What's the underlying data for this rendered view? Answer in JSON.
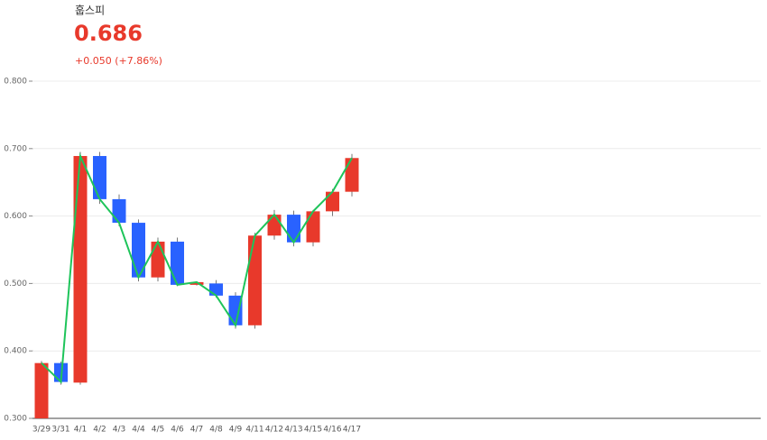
{
  "chart_data": {
    "type": "candlestick",
    "title": "훕스피",
    "price": "0.686",
    "change": "+0.050 (+7.86%)",
    "categories": [
      "3/29",
      "3/31",
      "4/1",
      "4/2",
      "4/3",
      "4/4",
      "4/5",
      "4/6",
      "4/7",
      "4/8",
      "4/9",
      "4/11",
      "4/12",
      "4/13",
      "4/15",
      "4/16",
      "4/17"
    ],
    "open": [
      0.3,
      0.382,
      0.353,
      0.689,
      0.625,
      0.59,
      0.509,
      0.562,
      0.498,
      0.5,
      0.482,
      0.438,
      0.571,
      0.602,
      0.561,
      0.607,
      0.636
    ],
    "high": [
      0.385,
      0.384,
      0.695,
      0.695,
      0.632,
      0.595,
      0.568,
      0.568,
      0.503,
      0.505,
      0.487,
      0.575,
      0.609,
      0.608,
      0.609,
      0.64,
      0.692
    ],
    "low": [
      0.3,
      0.35,
      0.35,
      0.618,
      0.585,
      0.503,
      0.503,
      0.496,
      0.497,
      0.479,
      0.433,
      0.433,
      0.565,
      0.555,
      0.555,
      0.6,
      0.629
    ],
    "close": [
      0.382,
      0.354,
      0.689,
      0.625,
      0.59,
      0.509,
      0.562,
      0.498,
      0.502,
      0.482,
      0.438,
      0.571,
      0.602,
      0.561,
      0.607,
      0.636,
      0.686
    ],
    "up_color": "#e8392b",
    "down_color": "#2962ff",
    "line_color": "#1ec45a",
    "ylim": [
      0.3,
      0.8
    ],
    "yticks": [
      {
        "value": 0.3,
        "label": "0.300"
      },
      {
        "value": 0.4,
        "label": "0.400"
      },
      {
        "value": 0.5,
        "label": "0.500"
      },
      {
        "value": 0.6,
        "label": "0.600"
      },
      {
        "value": 0.7,
        "label": "0.700"
      },
      {
        "value": 0.8,
        "label": "0.800"
      }
    ],
    "grid": true
  }
}
